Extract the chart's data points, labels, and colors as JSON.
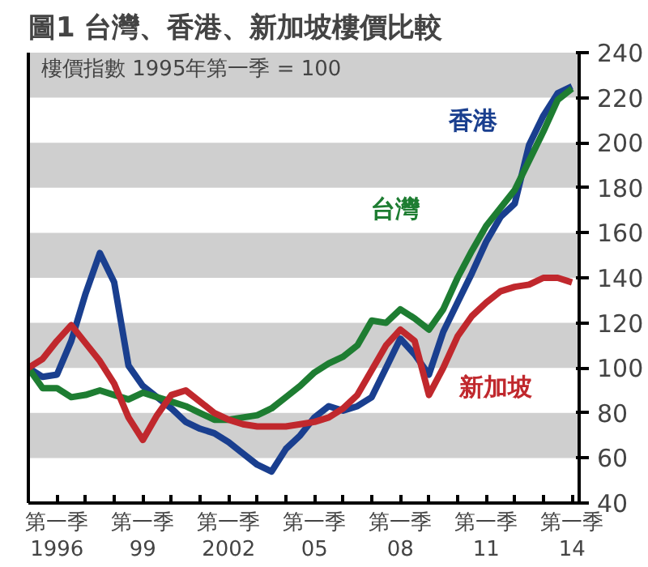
{
  "chart_data": {
    "type": "line",
    "title": "圖1 台灣、香港、新加坡樓價比較",
    "subtitle": "樓價指數 1995年第一季 = 100",
    "categories": [
      null,
      null,
      "第一季\n1996",
      null,
      null,
      null,
      null,
      null,
      "第一季\n99",
      null,
      null,
      null,
      null,
      null,
      "第一季\n2002",
      null,
      null,
      null,
      null,
      null,
      "第一季\n05",
      null,
      null,
      null,
      null,
      null,
      "第一季\n08",
      null,
      null,
      null,
      null,
      null,
      "第一季\n11",
      null,
      null,
      null,
      null,
      null,
      "第一季\n14"
    ],
    "ylim": [
      40,
      240
    ],
    "yticks": [
      40,
      60,
      80,
      100,
      120,
      140,
      160,
      180,
      200,
      220,
      240
    ],
    "bands": [
      {
        "axis": "y",
        "from": 220,
        "to": 240,
        "color": "#cfcfcf"
      },
      {
        "axis": "y",
        "from": 180,
        "to": 200,
        "color": "#cfcfcf"
      },
      {
        "axis": "y",
        "from": 140,
        "to": 160,
        "color": "#cfcfcf"
      },
      {
        "axis": "y",
        "from": 100,
        "to": 120,
        "color": "#cfcfcf"
      },
      {
        "axis": "y",
        "from": 60,
        "to": 80,
        "color": "#cfcfcf"
      }
    ],
    "series": [
      {
        "name": "香港",
        "color": "#1a3f8f",
        "values": [
          100,
          96,
          97,
          112,
          133,
          151,
          138,
          101,
          92,
          87,
          82,
          76,
          73,
          71,
          67,
          62,
          57,
          54,
          64,
          70,
          78,
          83,
          81,
          83,
          87,
          100,
          113,
          106,
          97,
          116,
          129,
          142,
          156,
          167,
          173,
          199,
          212,
          222,
          225
        ]
      },
      {
        "name": "台灣",
        "color": "#1e7d32",
        "values": [
          100,
          91,
          91,
          87,
          88,
          90,
          88,
          86,
          89,
          87,
          85,
          83,
          80,
          77,
          77,
          78,
          79,
          82,
          87,
          92,
          98,
          102,
          105,
          110,
          121,
          120,
          126,
          122,
          117,
          126,
          140,
          152,
          163,
          171,
          179,
          192,
          205,
          219,
          224
        ]
      },
      {
        "name": "新加坡",
        "color": "#c0282d",
        "values": [
          100,
          104,
          112,
          119,
          111,
          103,
          93,
          78,
          68,
          79,
          88,
          90,
          85,
          80,
          77,
          75,
          74,
          74,
          74,
          75,
          76,
          78,
          82,
          88,
          99,
          110,
          117,
          112,
          88,
          100,
          114,
          123,
          129,
          134,
          136,
          137,
          140,
          140,
          138
        ]
      }
    ]
  }
}
